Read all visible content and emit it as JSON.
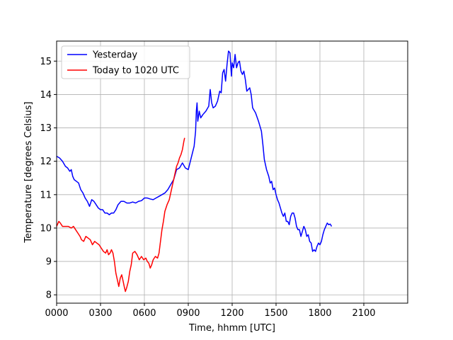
{
  "chart_data": {
    "type": "line",
    "title": "",
    "xlabel": "Time, hhmm [UTC]",
    "ylabel": "Temperature [degrees Celsius]",
    "xlim": [
      0,
      2400
    ],
    "ylim": [
      7.75,
      15.6
    ],
    "grid": true,
    "legend_position": "upper-left",
    "x_ticks": [
      {
        "value": 0,
        "label": "0000"
      },
      {
        "value": 300,
        "label": "0300"
      },
      {
        "value": 600,
        "label": "0600"
      },
      {
        "value": 900,
        "label": "0900"
      },
      {
        "value": 1200,
        "label": "1200"
      },
      {
        "value": 1500,
        "label": "1500"
      },
      {
        "value": 1800,
        "label": "1800"
      },
      {
        "value": 2100,
        "label": "2100"
      }
    ],
    "y_ticks": [
      {
        "value": 8,
        "label": "8"
      },
      {
        "value": 9,
        "label": "9"
      },
      {
        "value": 10,
        "label": "10"
      },
      {
        "value": 11,
        "label": "11"
      },
      {
        "value": 12,
        "label": "12"
      },
      {
        "value": 13,
        "label": "13"
      },
      {
        "value": 14,
        "label": "14"
      },
      {
        "value": 15,
        "label": "15"
      }
    ],
    "series": [
      {
        "name": "Yesterday",
        "color": "#0000ff",
        "points": [
          [
            0,
            12.15
          ],
          [
            20,
            12.1
          ],
          [
            40,
            12.0
          ],
          [
            60,
            11.85
          ],
          [
            75,
            11.8
          ],
          [
            90,
            11.7
          ],
          [
            100,
            11.75
          ],
          [
            110,
            11.55
          ],
          [
            120,
            11.45
          ],
          [
            135,
            11.4
          ],
          [
            150,
            11.35
          ],
          [
            165,
            11.15
          ],
          [
            180,
            11.05
          ],
          [
            195,
            10.9
          ],
          [
            210,
            10.8
          ],
          [
            225,
            10.65
          ],
          [
            240,
            10.85
          ],
          [
            255,
            10.8
          ],
          [
            270,
            10.7
          ],
          [
            285,
            10.6
          ],
          [
            300,
            10.55
          ],
          [
            315,
            10.55
          ],
          [
            330,
            10.45
          ],
          [
            345,
            10.45
          ],
          [
            360,
            10.4
          ],
          [
            375,
            10.45
          ],
          [
            390,
            10.45
          ],
          [
            405,
            10.55
          ],
          [
            420,
            10.7
          ],
          [
            440,
            10.8
          ],
          [
            460,
            10.8
          ],
          [
            480,
            10.75
          ],
          [
            500,
            10.75
          ],
          [
            520,
            10.78
          ],
          [
            540,
            10.75
          ],
          [
            560,
            10.8
          ],
          [
            580,
            10.82
          ],
          [
            600,
            10.9
          ],
          [
            620,
            10.9
          ],
          [
            640,
            10.87
          ],
          [
            660,
            10.85
          ],
          [
            680,
            10.9
          ],
          [
            700,
            10.95
          ],
          [
            720,
            11.0
          ],
          [
            740,
            11.05
          ],
          [
            760,
            11.15
          ],
          [
            780,
            11.3
          ],
          [
            800,
            11.45
          ],
          [
            820,
            11.75
          ],
          [
            840,
            11.8
          ],
          [
            860,
            11.95
          ],
          [
            880,
            11.8
          ],
          [
            900,
            11.75
          ],
          [
            920,
            12.1
          ],
          [
            940,
            12.45
          ],
          [
            950,
            12.9
          ],
          [
            955,
            13.5
          ],
          [
            960,
            13.75
          ],
          [
            965,
            13.2
          ],
          [
            975,
            13.5
          ],
          [
            985,
            13.3
          ],
          [
            1000,
            13.4
          ],
          [
            1020,
            13.5
          ],
          [
            1040,
            13.65
          ],
          [
            1050,
            14.15
          ],
          [
            1060,
            13.75
          ],
          [
            1070,
            13.6
          ],
          [
            1085,
            13.65
          ],
          [
            1100,
            13.8
          ],
          [
            1115,
            14.1
          ],
          [
            1125,
            14.05
          ],
          [
            1135,
            14.65
          ],
          [
            1145,
            14.75
          ],
          [
            1155,
            14.4
          ],
          [
            1165,
            14.9
          ],
          [
            1175,
            15.3
          ],
          [
            1185,
            15.25
          ],
          [
            1195,
            14.55
          ],
          [
            1200,
            14.95
          ],
          [
            1210,
            14.8
          ],
          [
            1220,
            15.2
          ],
          [
            1230,
            14.8
          ],
          [
            1240,
            14.95
          ],
          [
            1250,
            15.0
          ],
          [
            1260,
            14.7
          ],
          [
            1270,
            14.6
          ],
          [
            1280,
            14.7
          ],
          [
            1290,
            14.45
          ],
          [
            1300,
            14.1
          ],
          [
            1320,
            14.2
          ],
          [
            1330,
            14.0
          ],
          [
            1340,
            13.6
          ],
          [
            1360,
            13.45
          ],
          [
            1380,
            13.2
          ],
          [
            1390,
            13.05
          ],
          [
            1400,
            12.9
          ],
          [
            1410,
            12.5
          ],
          [
            1420,
            12.05
          ],
          [
            1435,
            11.75
          ],
          [
            1450,
            11.55
          ],
          [
            1460,
            11.35
          ],
          [
            1470,
            11.4
          ],
          [
            1480,
            11.15
          ],
          [
            1490,
            11.2
          ],
          [
            1500,
            11.0
          ],
          [
            1510,
            10.85
          ],
          [
            1520,
            10.75
          ],
          [
            1530,
            10.6
          ],
          [
            1540,
            10.45
          ],
          [
            1550,
            10.35
          ],
          [
            1560,
            10.45
          ],
          [
            1570,
            10.2
          ],
          [
            1580,
            10.2
          ],
          [
            1590,
            10.1
          ],
          [
            1600,
            10.35
          ],
          [
            1610,
            10.45
          ],
          [
            1620,
            10.45
          ],
          [
            1630,
            10.3
          ],
          [
            1640,
            10.05
          ],
          [
            1650,
            9.95
          ],
          [
            1660,
            9.95
          ],
          [
            1670,
            9.75
          ],
          [
            1680,
            9.9
          ],
          [
            1690,
            10.05
          ],
          [
            1700,
            9.95
          ],
          [
            1710,
            9.75
          ],
          [
            1720,
            9.8
          ],
          [
            1730,
            9.6
          ],
          [
            1740,
            9.55
          ],
          [
            1750,
            9.3
          ],
          [
            1760,
            9.35
          ],
          [
            1770,
            9.3
          ],
          [
            1780,
            9.45
          ],
          [
            1790,
            9.55
          ],
          [
            1800,
            9.5
          ],
          [
            1810,
            9.6
          ],
          [
            1820,
            9.8
          ],
          [
            1830,
            9.95
          ],
          [
            1840,
            10.05
          ],
          [
            1850,
            10.15
          ],
          [
            1860,
            10.1
          ],
          [
            1870,
            10.12
          ],
          [
            1880,
            10.05
          ]
        ]
      },
      {
        "name": "Today to 1020 UTC",
        "color": "#ff0000",
        "points": [
          [
            0,
            10.05
          ],
          [
            15,
            10.2
          ],
          [
            25,
            10.15
          ],
          [
            40,
            10.05
          ],
          [
            60,
            10.05
          ],
          [
            80,
            10.05
          ],
          [
            100,
            10.0
          ],
          [
            115,
            10.05
          ],
          [
            130,
            9.95
          ],
          [
            145,
            9.85
          ],
          [
            160,
            9.75
          ],
          [
            170,
            9.65
          ],
          [
            185,
            9.6
          ],
          [
            200,
            9.75
          ],
          [
            215,
            9.7
          ],
          [
            230,
            9.65
          ],
          [
            245,
            9.5
          ],
          [
            260,
            9.6
          ],
          [
            275,
            9.55
          ],
          [
            290,
            9.5
          ],
          [
            305,
            9.4
          ],
          [
            320,
            9.3
          ],
          [
            335,
            9.25
          ],
          [
            345,
            9.35
          ],
          [
            355,
            9.2
          ],
          [
            365,
            9.25
          ],
          [
            375,
            9.35
          ],
          [
            385,
            9.25
          ],
          [
            395,
            9.0
          ],
          [
            405,
            8.65
          ],
          [
            415,
            8.45
          ],
          [
            425,
            8.25
          ],
          [
            435,
            8.5
          ],
          [
            445,
            8.6
          ],
          [
            455,
            8.4
          ],
          [
            462,
            8.25
          ],
          [
            470,
            8.1
          ],
          [
            478,
            8.2
          ],
          [
            490,
            8.4
          ],
          [
            500,
            8.7
          ],
          [
            510,
            8.9
          ],
          [
            520,
            9.25
          ],
          [
            535,
            9.3
          ],
          [
            550,
            9.2
          ],
          [
            565,
            9.05
          ],
          [
            580,
            9.15
          ],
          [
            595,
            9.05
          ],
          [
            610,
            9.1
          ],
          [
            620,
            9.0
          ],
          [
            630,
            8.95
          ],
          [
            640,
            8.8
          ],
          [
            650,
            8.9
          ],
          [
            660,
            9.05
          ],
          [
            675,
            9.15
          ],
          [
            690,
            9.1
          ],
          [
            700,
            9.25
          ],
          [
            710,
            9.6
          ],
          [
            720,
            9.95
          ],
          [
            730,
            10.2
          ],
          [
            740,
            10.5
          ],
          [
            755,
            10.7
          ],
          [
            770,
            10.85
          ],
          [
            780,
            11.05
          ],
          [
            790,
            11.25
          ],
          [
            800,
            11.45
          ],
          [
            810,
            11.65
          ],
          [
            820,
            11.85
          ],
          [
            830,
            11.95
          ],
          [
            840,
            12.1
          ],
          [
            850,
            12.2
          ],
          [
            860,
            12.35
          ],
          [
            870,
            12.6
          ],
          [
            875,
            12.7
          ]
        ]
      }
    ]
  }
}
